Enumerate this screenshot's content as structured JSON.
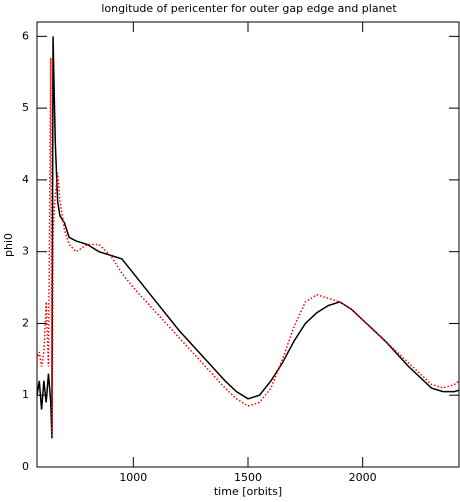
{
  "chart_data": {
    "type": "line",
    "title": "longitude of pericenter for outer gap edge and planet",
    "x_label": "time [orbits]",
    "y_label": "phi0",
    "x": [
      580,
      590,
      600,
      610,
      620,
      630,
      640,
      645,
      650,
      655,
      660,
      670,
      680,
      700,
      720,
      750,
      800,
      850,
      900,
      950,
      1000,
      1100,
      1200,
      1300,
      1400,
      1450,
      1500,
      1550,
      1600,
      1650,
      1700,
      1750,
      1800,
      1850,
      1900,
      1950,
      2000,
      2100,
      2200,
      2300,
      2350,
      2400,
      2420
    ],
    "series": [
      {
        "color": "#000000",
        "dash": "solid",
        "values": [
          1.0,
          1.2,
          0.8,
          1.2,
          0.9,
          1.3,
          0.9,
          0.4,
          6.0,
          5.2,
          4.5,
          3.7,
          3.5,
          3.4,
          3.2,
          3.15,
          3.1,
          3.0,
          2.95,
          2.9,
          2.7,
          2.3,
          1.9,
          1.55,
          1.2,
          1.05,
          0.95,
          1.0,
          1.2,
          1.45,
          1.75,
          2.0,
          2.15,
          2.25,
          2.3,
          2.2,
          2.05,
          1.75,
          1.4,
          1.1,
          1.05,
          1.05,
          1.07
        ]
      },
      {
        "color": "#ff0000",
        "dash": "dotted",
        "values": [
          1.5,
          1.6,
          1.4,
          1.6,
          2.3,
          1.4,
          5.7,
          0.4,
          3.2,
          3.6,
          3.8,
          4.1,
          3.7,
          3.3,
          3.1,
          3.0,
          3.1,
          3.1,
          2.95,
          2.7,
          2.5,
          2.15,
          1.8,
          1.45,
          1.1,
          0.95,
          0.85,
          0.9,
          1.1,
          1.5,
          1.95,
          2.3,
          2.4,
          2.35,
          2.3,
          2.2,
          2.05,
          1.75,
          1.45,
          1.15,
          1.1,
          1.15,
          1.2
        ]
      }
    ],
    "xlim": [
      580,
      2420
    ],
    "ylim": [
      0,
      6.2
    ],
    "xticks": [
      1000,
      1500,
      2000
    ],
    "yticks": [
      0,
      1,
      2,
      3,
      4,
      5,
      6
    ]
  }
}
